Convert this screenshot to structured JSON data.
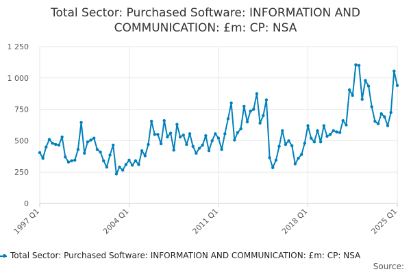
{
  "title_line1": "Total Sector: Purchased Software: INFORMATION AND",
  "title_line2": "COMMUNICATION: £m: CP: NSA",
  "legend_label": "Total Sector: Purchased Software: INFORMATION AND COMMUNICATION: £m: CP: NSA",
  "source_label": "Source:",
  "colors": {
    "series": "#0080bb",
    "grid": "#e6e6e6",
    "axis": "#cccccc"
  },
  "chart_data": {
    "type": "line",
    "title": "Total Sector: Purchased Software: INFORMATION AND COMMUNICATION: £m: CP: NSA",
    "x_tick_labels": [
      "1997 Q1",
      "2004 Q1",
      "2011 Q1",
      "2018 Q1",
      "2025 Q1"
    ],
    "y_tick_labels": [
      "0",
      "250",
      "500",
      "750",
      "1 000",
      "1 250"
    ],
    "ylim": [
      0,
      1250
    ],
    "grid": true,
    "legend_position": "bottom",
    "start": "1997 Q1",
    "frequency": "quarterly",
    "series": [
      {
        "name": "Total Sector: Purchased Software: INFORMATION AND COMMUNICATION: £m: CP: NSA",
        "values": [
          405,
          360,
          450,
          510,
          480,
          470,
          465,
          530,
          370,
          330,
          340,
          345,
          430,
          645,
          400,
          490,
          505,
          520,
          430,
          410,
          340,
          290,
          385,
          465,
          235,
          290,
          265,
          310,
          345,
          305,
          340,
          310,
          420,
          380,
          470,
          655,
          550,
          550,
          475,
          660,
          530,
          560,
          425,
          630,
          530,
          545,
          470,
          555,
          455,
          400,
          440,
          465,
          540,
          420,
          500,
          555,
          520,
          430,
          555,
          675,
          800,
          505,
          565,
          595,
          775,
          650,
          735,
          750,
          875,
          640,
          700,
          825,
          365,
          285,
          345,
          455,
          580,
          470,
          500,
          460,
          315,
          360,
          390,
          480,
          620,
          520,
          490,
          580,
          490,
          620,
          535,
          550,
          580,
          570,
          565,
          660,
          625,
          905,
          860,
          1105,
          1100,
          830,
          980,
          935,
          770,
          655,
          635,
          715,
          690,
          620,
          725,
          1055,
          940
        ]
      }
    ]
  }
}
